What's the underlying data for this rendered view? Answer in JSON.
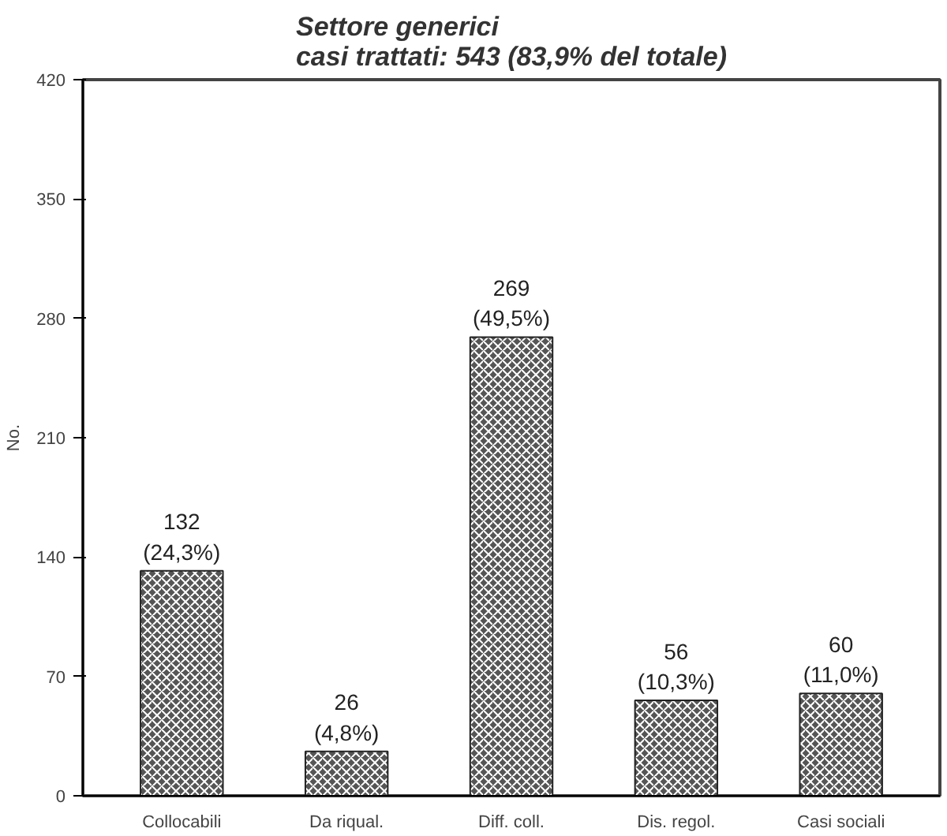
{
  "chart_data": {
    "type": "bar",
    "title": "Settore generici\ncasi trattati: 543 (83,9% del totale)",
    "ylabel": "No.",
    "categories": [
      "Collocabili",
      "Da riqual.",
      "Diff. coll.",
      "Dis. regol.",
      "Casi sociali"
    ],
    "values": [
      132,
      26,
      269,
      56,
      60
    ],
    "value_labels": [
      "132\n(24,3%)",
      "26\n(4,8%)",
      "269\n(49,5%)",
      "56\n(10,3%)",
      "60\n(11,0%)"
    ],
    "color": "#555555",
    "ylim": [
      0,
      420
    ],
    "yticks": [
      0,
      70,
      140,
      210,
      280,
      350,
      420
    ],
    "grid": false
  }
}
